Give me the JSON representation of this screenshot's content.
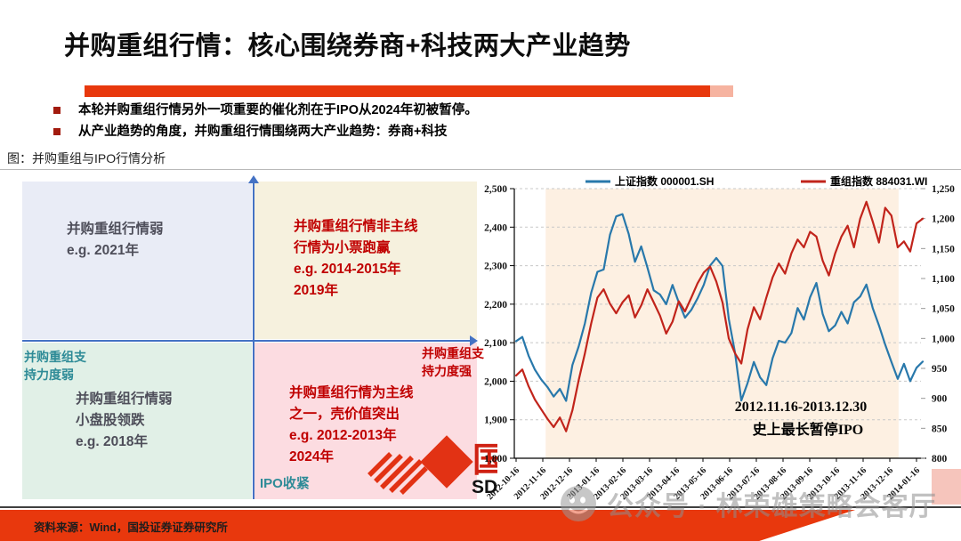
{
  "slide": {
    "title": "并购重组行情：核心围绕券商+科技两大产业趋势",
    "bullets": [
      "本轮并购重组行情另外一项重要的催化剂在于IPO从2024年初被暂停。",
      "从产业趋势的角度，并购重组行情围绕两大产业趋势：券商+科技"
    ],
    "figure_caption": "图：并购重组与IPO行情分析",
    "footer_source": "资料来源：Wind，国投证券证券研究所",
    "watermark": "公众号 · 林荣雄策略会客厅",
    "accent_red": "#e8380d"
  },
  "quadrant": {
    "cells": {
      "top_left": {
        "text": "并购重组行情弱\ne.g. 2021年",
        "bg": "#e9ecf6"
      },
      "top_right": {
        "text": "并购重组行情非主线\n行情为小票跑赢\ne.g. 2014-2015年\n2019年",
        "bg": "#f6f1de"
      },
      "bottom_left": {
        "text": "并购重组行情弱\n小盘股领跌\ne.g. 2018年",
        "bg": "#e1f0e7"
      },
      "bottom_right": {
        "text": "并购重组行情为主线\n之一，壳价值突出\ne.g. 2012-2013年\n2024年",
        "bg": "#fcdce1"
      }
    },
    "labels": {
      "axis_left": "并购重组支\n持力度弱",
      "axis_right": "并购重组支\n持力度强",
      "axis_bottom": "IPO收紧"
    },
    "axis_color": "#4472c4"
  },
  "logo": {
    "cn": "国",
    "en": "SD",
    "color": "#e23214"
  },
  "chart_data": {
    "type": "line",
    "legend": [
      {
        "name": "上证指数 000001.SH",
        "color": "#2878ab"
      },
      {
        "name": "重组指数 884031.WI",
        "color": "#c1241b"
      }
    ],
    "x_tick_labels": [
      "2012-10-16",
      "2012-11-16",
      "2012-12-16",
      "2013-01-16",
      "2013-02-16",
      "2013-03-16",
      "2013-04-16",
      "2013-05-16",
      "2013-06-16",
      "2013-07-16",
      "2013-08-16",
      "2013-09-16",
      "2013-10-16",
      "2013-11-16",
      "2013-12-16",
      "2014-01-16"
    ],
    "left_axis": {
      "min": 1800,
      "max": 2500,
      "tick_labels": [
        "2,500",
        "2,400",
        "2,300",
        "2,200",
        "2,100",
        "2,000",
        "1,900",
        "1,800"
      ]
    },
    "right_axis": {
      "min": 800,
      "max": 1250,
      "tick_labels": [
        "1,250",
        "1,200",
        "1,150",
        "1,100",
        "1,050",
        "1,000",
        "950",
        "900",
        "850",
        "800"
      ]
    },
    "series": [
      {
        "name": "上证指数 000001.SH",
        "axis": "left",
        "color": "#2878ab",
        "values": [
          2104,
          2115,
          2066,
          2030,
          2005,
          1985,
          1960,
          1980,
          1949,
          2042,
          2090,
          2150,
          2230,
          2284,
          2290,
          2380,
          2428,
          2434,
          2382,
          2310,
          2350,
          2295,
          2236,
          2225,
          2200,
          2250,
          2205,
          2165,
          2185,
          2215,
          2250,
          2300,
          2320,
          2299,
          2162,
          2073,
          1950,
          1995,
          2050,
          2010,
          1990,
          2060,
          2105,
          2100,
          2125,
          2190,
          2160,
          2218,
          2255,
          2175,
          2130,
          2145,
          2180,
          2150,
          2205,
          2220,
          2251,
          2190,
          2145,
          2095,
          2050,
          2006,
          2045,
          2000,
          2035,
          2051
        ]
      },
      {
        "name": "重组指数 884031.WI",
        "axis": "right",
        "color": "#c1241b",
        "values": [
          938,
          948,
          920,
          898,
          882,
          866,
          852,
          868,
          845,
          880,
          930,
          975,
          1025,
          1068,
          1082,
          1058,
          1042,
          1060,
          1072,
          1035,
          1055,
          1082,
          1060,
          1038,
          1008,
          1028,
          1062,
          1045,
          1068,
          1092,
          1110,
          1120,
          1095,
          1060,
          1000,
          975,
          958,
          1015,
          1052,
          1032,
          1068,
          1102,
          1125,
          1108,
          1142,
          1165,
          1152,
          1178,
          1170,
          1130,
          1105,
          1142,
          1170,
          1188,
          1152,
          1200,
          1228,
          1195,
          1160,
          1218,
          1205,
          1152,
          1162,
          1145,
          1192,
          1200
        ]
      }
    ],
    "highlight_region": {
      "x_start_frac": 0.077,
      "x_end_frac": 0.945,
      "color": "#fdf0e2"
    },
    "annotation": {
      "line1": "2012.11.16-2013.12.30",
      "line2": "史上最长暂停IPO"
    },
    "grid": "dashed-horizontal",
    "legend_position": "top"
  }
}
